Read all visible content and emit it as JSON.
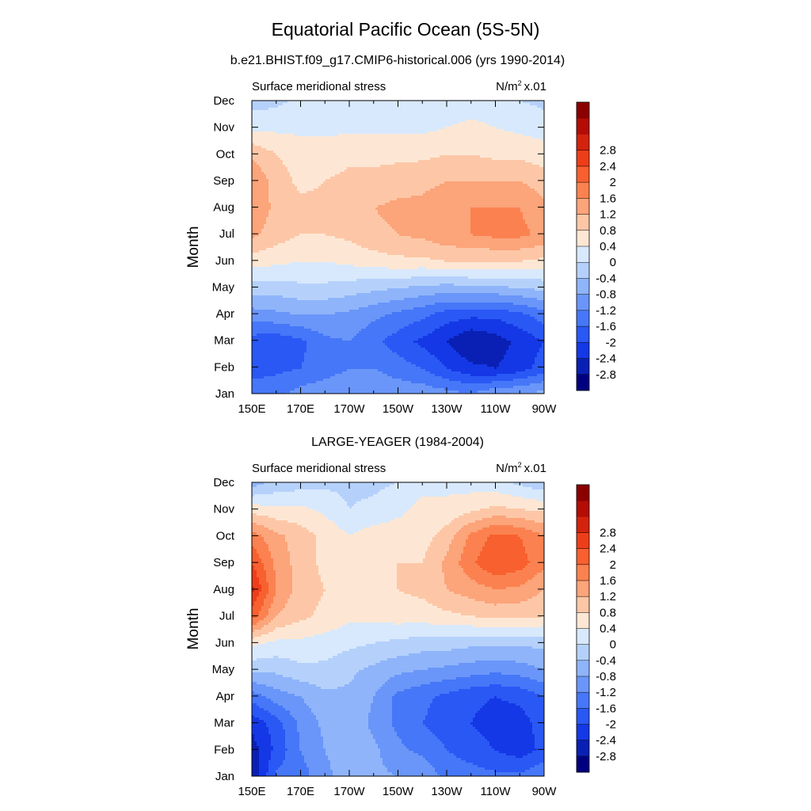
{
  "figure": {
    "title": "Equatorial Pacific Ocean (5S-5N)"
  },
  "colorbar": {
    "colors": [
      "#00007f",
      "#0a20b4",
      "#1438e6",
      "#2a58f5",
      "#4677f8",
      "#6a96f9",
      "#8fb4fa",
      "#b5d1fb",
      "#d8e9fd",
      "#fde7d4",
      "#fdc7a7",
      "#fca47a",
      "#fb8250",
      "#f8602f",
      "#ee3e19",
      "#d3230d",
      "#b30d06",
      "#8b0000"
    ],
    "labels": [
      "-2.8",
      "-2.4",
      "-2",
      "-1.6",
      "-1.2",
      "-0.8",
      "-0.4",
      "0",
      "0.4",
      "0.8",
      "1.2",
      "1.6",
      "2",
      "2.4",
      "2.8"
    ]
  },
  "chart_data": [
    {
      "type": "heatmap",
      "title": "b.e21.BHIST.f09_g17.CMIP6-historical.006 (yrs 1990-2014)",
      "left_label": "Surface meridional stress",
      "units_base": "N/m",
      "units_sup": "2",
      "units_scale": "x.01",
      "xlabel": "",
      "ylabel": "Month",
      "xticks": [
        "150E",
        "170E",
        "170W",
        "150W",
        "130W",
        "110W",
        "90W"
      ],
      "yticks": [
        "Jan",
        "Feb",
        "Mar",
        "Apr",
        "May",
        "Jun",
        "Jul",
        "Aug",
        "Sep",
        "Oct",
        "Nov",
        "Dec"
      ],
      "x_lon": [
        150,
        160,
        170,
        180,
        190,
        200,
        210,
        220,
        230,
        240,
        250,
        260,
        270
      ],
      "z": [
        [
          -1.3,
          -1.3,
          -1.0,
          -0.9,
          -0.8,
          -0.8,
          -0.9,
          -0.9,
          -1.0,
          -1.1,
          -0.8,
          -0.7,
          -0.6
        ],
        [
          -1.8,
          -1.7,
          -1.6,
          -1.4,
          -1.2,
          -1.2,
          -1.4,
          -1.6,
          -2.0,
          -2.3,
          -2.4,
          -2.2,
          -1.8
        ],
        [
          -1.8,
          -1.9,
          -1.7,
          -1.3,
          -1.2,
          -1.5,
          -1.8,
          -2.1,
          -2.4,
          -2.8,
          -2.6,
          -2.3,
          -2.0
        ],
        [
          -1.0,
          -0.9,
          -0.8,
          -0.8,
          -0.9,
          -1.1,
          -1.3,
          -1.5,
          -1.8,
          -1.9,
          -1.9,
          -1.7,
          -1.4
        ],
        [
          -0.2,
          -0.2,
          -0.1,
          -0.1,
          -0.2,
          -0.3,
          -0.4,
          -0.5,
          -0.6,
          -0.5,
          -0.5,
          -0.4,
          -0.3
        ],
        [
          0.6,
          0.5,
          0.4,
          0.4,
          0.5,
          0.6,
          0.7,
          0.7,
          0.8,
          0.8,
          0.8,
          0.8,
          0.7
        ],
        [
          1.3,
          1.0,
          0.8,
          0.8,
          0.9,
          1.1,
          1.2,
          1.3,
          1.5,
          1.6,
          1.7,
          1.7,
          1.5
        ],
        [
          1.5,
          1.1,
          0.9,
          0.9,
          1.0,
          1.2,
          1.3,
          1.3,
          1.4,
          1.6,
          1.6,
          1.6,
          1.3
        ],
        [
          1.6,
          1.0,
          0.7,
          0.8,
          0.9,
          0.9,
          1.0,
          1.1,
          1.2,
          1.2,
          1.2,
          1.2,
          1.0
        ],
        [
          1.1,
          0.8,
          0.6,
          0.6,
          0.7,
          0.7,
          0.7,
          0.7,
          0.8,
          0.8,
          0.7,
          0.7,
          0.6
        ],
        [
          0.3,
          0.3,
          0.3,
          0.3,
          0.3,
          0.3,
          0.3,
          0.3,
          0.4,
          0.5,
          0.4,
          0.3,
          0.2
        ],
        [
          -0.2,
          -0.1,
          0.1,
          0.1,
          0.1,
          0.1,
          0.1,
          0.1,
          0.1,
          0.2,
          0.1,
          0.0,
          -0.1
        ]
      ]
    },
    {
      "type": "heatmap",
      "title": "LARGE-YEAGER (1984-2004)",
      "left_label": "Surface meridional stress",
      "units_base": "N/m",
      "units_sup": "2",
      "units_scale": "x.01",
      "xlabel": "",
      "ylabel": "Month",
      "xticks": [
        "150E",
        "170E",
        "170W",
        "150W",
        "130W",
        "110W",
        "90W"
      ],
      "yticks": [
        "Jan",
        "Feb",
        "Mar",
        "Apr",
        "May",
        "Jun",
        "Jul",
        "Aug",
        "Sep",
        "Oct",
        "Nov",
        "Dec"
      ],
      "x_lon": [
        150,
        160,
        170,
        180,
        190,
        200,
        210,
        220,
        230,
        240,
        250,
        260,
        270
      ],
      "z": [
        [
          -2.8,
          -1.5,
          -1.4,
          -0.9,
          -0.6,
          -0.7,
          -0.8,
          -0.9,
          -1.3,
          -1.4,
          -1.5,
          -1.5,
          -1.2
        ],
        [
          -2.6,
          -1.9,
          -1.2,
          -0.8,
          -0.6,
          -0.7,
          -1.1,
          -1.3,
          -1.6,
          -1.8,
          -2.0,
          -2.2,
          -1.9
        ],
        [
          -2.3,
          -1.8,
          -1.1,
          -0.7,
          -0.5,
          -0.9,
          -1.3,
          -1.6,
          -1.8,
          -2.0,
          -2.2,
          -2.2,
          -1.8
        ],
        [
          -1.4,
          -1.0,
          -0.8,
          -0.5,
          -0.5,
          -0.8,
          -1.3,
          -1.5,
          -1.7,
          -1.9,
          -2.0,
          -1.9,
          -1.6
        ],
        [
          -0.3,
          -0.3,
          -0.1,
          -0.1,
          -0.3,
          -0.5,
          -0.7,
          -0.8,
          -0.9,
          -1.0,
          -1.1,
          -1.0,
          -0.8
        ],
        [
          0.5,
          0.3,
          0.3,
          0.2,
          0.1,
          0.0,
          -0.1,
          -0.2,
          -0.2,
          -0.3,
          -0.3,
          -0.3,
          -0.3
        ],
        [
          2.2,
          1.2,
          0.9,
          0.7,
          0.5,
          0.5,
          0.6,
          0.6,
          0.7,
          0.8,
          0.9,
          0.9,
          0.8
        ],
        [
          2.9,
          1.6,
          1.0,
          0.8,
          0.6,
          0.7,
          0.8,
          0.9,
          1.2,
          1.4,
          1.6,
          1.5,
          1.2
        ],
        [
          2.4,
          1.5,
          1.0,
          0.7,
          0.5,
          0.7,
          0.8,
          0.8,
          1.3,
          1.9,
          2.4,
          2.2,
          1.7
        ],
        [
          1.8,
          1.3,
          1.0,
          0.7,
          0.4,
          0.6,
          0.6,
          0.6,
          1.0,
          1.7,
          2.1,
          2.0,
          1.6
        ],
        [
          0.6,
          0.5,
          0.5,
          0.3,
          0.0,
          0.1,
          0.3,
          0.5,
          0.5,
          0.7,
          0.9,
          0.8,
          0.7
        ],
        [
          -0.6,
          -0.3,
          -0.2,
          -0.1,
          -0.1,
          -0.1,
          0.0,
          0.3,
          0.3,
          0.2,
          0.1,
          -0.1,
          -0.3
        ]
      ]
    }
  ]
}
